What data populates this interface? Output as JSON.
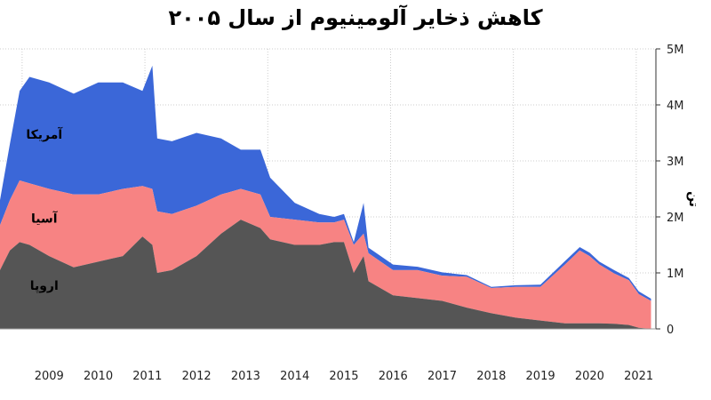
{
  "chart_data": {
    "type": "area",
    "title": "کاهش ذخایر آلومینیوم از سال ۲۰۰۵",
    "ylabel": "تن",
    "ylim": [
      0,
      5000000
    ],
    "xlim": [
      2008.5,
      2021.85
    ],
    "stacked": true,
    "grid": true,
    "y_ticks": [
      0,
      1000000,
      2000000,
      3000000,
      4000000,
      5000000
    ],
    "y_tick_labels": [
      "0",
      "1M",
      "2M",
      "3M",
      "4M",
      "5M"
    ],
    "x_ticks": [
      2009,
      2010,
      2011,
      2012,
      2013,
      2014,
      2015,
      2016,
      2017,
      2018,
      2019,
      2020,
      2021
    ],
    "x_tick_labels": [
      "2009",
      "2010",
      "2011",
      "2012",
      "2013",
      "2014",
      "2015",
      "2016",
      "2017",
      "2018",
      "2019",
      "2020",
      "2021"
    ],
    "x": [
      2008.5,
      2008.7,
      2008.9,
      2009.1,
      2009.5,
      2010.0,
      2010.5,
      2011.0,
      2011.4,
      2011.6,
      2011.7,
      2012.0,
      2012.5,
      2013.0,
      2013.4,
      2013.8,
      2014.0,
      2014.5,
      2015.0,
      2015.3,
      2015.5,
      2015.7,
      2015.9,
      2016.0,
      2016.5,
      2017.0,
      2017.5,
      2018.0,
      2018.5,
      2019.0,
      2019.5,
      2020.0,
      2020.3,
      2020.5,
      2020.7,
      2021.0,
      2021.3,
      2021.5,
      2021.75
    ],
    "series": [
      {
        "name": "اروپا",
        "color": "#555555",
        "values": [
          1050000,
          1400000,
          1550000,
          1500000,
          1300000,
          1100000,
          1200000,
          1300000,
          1650000,
          1500000,
          1000000,
          1050000,
          1300000,
          1700000,
          1950000,
          1800000,
          1600000,
          1500000,
          1500000,
          1550000,
          1550000,
          1000000,
          1300000,
          850000,
          600000,
          550000,
          500000,
          380000,
          280000,
          200000,
          150000,
          100000,
          100000,
          100000,
          100000,
          90000,
          70000,
          20000,
          0
        ]
      },
      {
        "name": "آسیا",
        "color": "#f78383",
        "values": [
          800000,
          900000,
          1100000,
          1100000,
          1200000,
          1300000,
          1200000,
          1200000,
          900000,
          1000000,
          1100000,
          1000000,
          900000,
          700000,
          550000,
          600000,
          400000,
          450000,
          400000,
          350000,
          400000,
          500000,
          400000,
          500000,
          450000,
          500000,
          450000,
          550000,
          450000,
          550000,
          600000,
          1050000,
          1300000,
          1200000,
          1050000,
          900000,
          800000,
          600000,
          500000
        ]
      },
      {
        "name": "آمریکا",
        "color": "#3b67d8",
        "values": [
          450000,
          1000000,
          1600000,
          1900000,
          1900000,
          1800000,
          2000000,
          1900000,
          1700000,
          2200000,
          1300000,
          1300000,
          1300000,
          1000000,
          700000,
          800000,
          700000,
          300000,
          150000,
          100000,
          100000,
          50000,
          550000,
          100000,
          100000,
          60000,
          60000,
          30000,
          20000,
          30000,
          40000,
          60000,
          60000,
          60000,
          50000,
          60000,
          40000,
          50000,
          40000
        ]
      }
    ]
  }
}
